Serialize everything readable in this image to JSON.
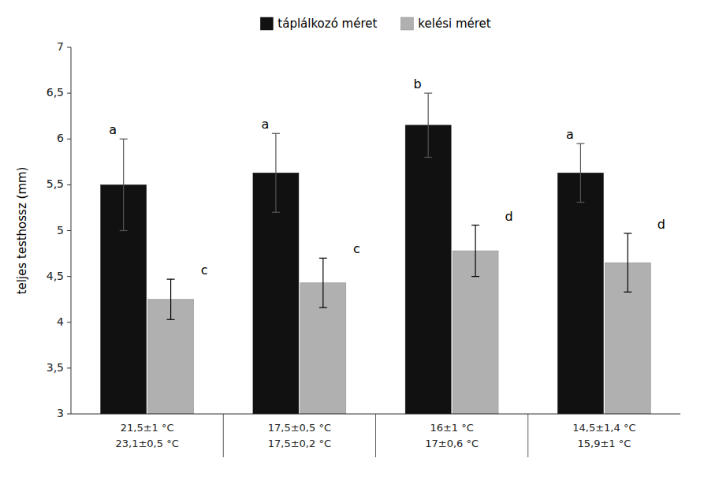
{
  "chart_data": {
    "type": "bar",
    "categories": [
      [
        "21,5±1 °C",
        "23,1±0,5 °C"
      ],
      [
        "17,5±0,5 °C",
        "17,5±0,2 °C"
      ],
      [
        "16±1 °C",
        "17±0,6 °C"
      ],
      [
        "14,5±1,4 °C",
        "15,9±1 °C"
      ]
    ],
    "series": [
      {
        "name": "táplálkozó méret",
        "color": "#111111",
        "values": [
          5.5,
          5.63,
          6.15,
          5.63
        ],
        "errors": [
          0.5,
          0.43,
          0.35,
          0.32
        ],
        "annotations": [
          "a",
          "a",
          "b",
          "a"
        ]
      },
      {
        "name": "kelési méret",
        "color": "#b0b0b0",
        "values": [
          4.25,
          4.43,
          4.78,
          4.65
        ],
        "errors": [
          0.22,
          0.27,
          0.28,
          0.32
        ],
        "annotations": [
          "c",
          "c",
          "d",
          "d"
        ]
      }
    ],
    "ylabel": "teljes testhossz (mm)",
    "ylim": [
      3.0,
      7.0
    ],
    "yticks": [
      3,
      {
        "value": 3.5,
        "label": "3,5"
      },
      4,
      {
        "value": 4.5,
        "label": "4,5"
      },
      5,
      {
        "value": 5.5,
        "label": "5,5"
      },
      6,
      {
        "value": 6.5,
        "label": "6,5"
      },
      7
    ],
    "grid": false,
    "legend": "upper center"
  }
}
